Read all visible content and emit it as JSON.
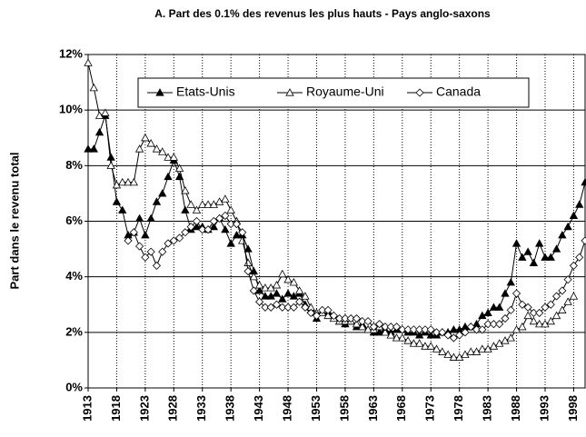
{
  "chart_data": {
    "type": "line",
    "title": "A. Part des 0.1% des revenus les plus hauts  - Pays anglo-saxons",
    "ylabel": "Part dans le revenu total",
    "x": [
      1913,
      1914,
      1915,
      1916,
      1917,
      1918,
      1919,
      1920,
      1921,
      1922,
      1923,
      1924,
      1925,
      1926,
      1927,
      1928,
      1929,
      1930,
      1931,
      1932,
      1933,
      1934,
      1935,
      1936,
      1937,
      1938,
      1939,
      1940,
      1941,
      1942,
      1943,
      1944,
      1945,
      1946,
      1947,
      1948,
      1949,
      1950,
      1951,
      1952,
      1953,
      1954,
      1955,
      1956,
      1957,
      1958,
      1959,
      1960,
      1961,
      1962,
      1963,
      1964,
      1965,
      1966,
      1967,
      1968,
      1969,
      1970,
      1971,
      1972,
      1973,
      1974,
      1975,
      1976,
      1977,
      1978,
      1979,
      1980,
      1981,
      1982,
      1983,
      1984,
      1985,
      1986,
      1987,
      1988,
      1989,
      1990,
      1991,
      1992,
      1993,
      1994,
      1995,
      1996,
      1997,
      1998,
      1999,
      2000
    ],
    "xlim": [
      1913,
      2000
    ],
    "xticks": [
      1913,
      1918,
      1923,
      1928,
      1933,
      1938,
      1943,
      1948,
      1953,
      1958,
      1963,
      1968,
      1973,
      1978,
      1983,
      1988,
      1993,
      1998
    ],
    "ylim": [
      0,
      12
    ],
    "yticks": [
      {
        "value": 0,
        "label": "0%"
      },
      {
        "value": 2,
        "label": "2%"
      },
      {
        "value": 4,
        "label": "4%"
      },
      {
        "value": 6,
        "label": "6%"
      },
      {
        "value": 8,
        "label": "8%"
      },
      {
        "value": 10,
        "label": "10%"
      },
      {
        "value": 12,
        "label": "12%"
      }
    ],
    "grid": true,
    "series": [
      {
        "name": "Etats-Unis",
        "color": "#000000",
        "marker": "filled-triangle",
        "values": [
          8.6,
          8.6,
          9.2,
          9.8,
          8.3,
          6.7,
          6.4,
          5.5,
          5.6,
          6.1,
          5.5,
          6.1,
          6.7,
          7.0,
          7.6,
          8.2,
          7.6,
          6.4,
          5.7,
          5.8,
          5.8,
          5.7,
          5.8,
          6.1,
          5.7,
          5.2,
          5.5,
          5.5,
          5.0,
          4.2,
          3.5,
          3.3,
          3.3,
          3.4,
          3.2,
          3.4,
          3.3,
          3.4,
          3.0,
          2.8,
          2.5,
          2.7,
          2.7,
          2.6,
          2.4,
          2.3,
          2.4,
          2.2,
          2.3,
          2.1,
          2.0,
          2.0,
          2.1,
          2.0,
          2.1,
          2.1,
          2.0,
          2.0,
          1.9,
          2.0,
          1.9,
          1.9,
          2.0,
          2.0,
          2.1,
          2.1,
          2.2,
          2.2,
          2.3,
          2.6,
          2.7,
          2.9,
          2.9,
          3.4,
          3.8,
          5.2,
          4.7,
          4.9,
          4.5,
          5.2,
          4.7,
          4.7,
          5.0,
          5.5,
          5.8,
          6.2,
          6.6,
          7.4
        ]
      },
      {
        "name": "Royaume-Uni",
        "color": "#000000",
        "marker": "open-triangle",
        "values": [
          11.7,
          10.8,
          9.8,
          9.9,
          8.0,
          7.3,
          7.4,
          7.4,
          7.4,
          8.6,
          9.0,
          8.8,
          8.6,
          8.5,
          8.3,
          8.3,
          7.9,
          7.1,
          6.6,
          6.4,
          6.6,
          6.6,
          6.6,
          6.7,
          6.8,
          6.4,
          6.0,
          5.3,
          4.5,
          4.0,
          3.7,
          3.6,
          3.6,
          3.7,
          4.1,
          3.9,
          3.8,
          3.5,
          3.3,
          2.9,
          2.7,
          2.7,
          2.6,
          2.5,
          2.4,
          2.4,
          2.4,
          2.3,
          2.2,
          2.1,
          2.1,
          2.2,
          2.0,
          1.9,
          1.8,
          1.8,
          1.7,
          1.6,
          1.6,
          1.5,
          1.5,
          1.4,
          1.3,
          1.2,
          1.1,
          1.1,
          1.2,
          1.3,
          1.3,
          1.4,
          1.4,
          1.5,
          1.6,
          1.7,
          1.8,
          2.1,
          2.2,
          2.6,
          2.4,
          2.3,
          2.3,
          2.4,
          2.6,
          2.8,
          3.1,
          3.3,
          null,
          null
        ]
      },
      {
        "name": "Canada",
        "color": "#000000",
        "marker": "open-diamond",
        "values": [
          null,
          null,
          null,
          null,
          null,
          null,
          null,
          5.3,
          5.6,
          5.1,
          4.7,
          4.9,
          4.4,
          4.9,
          5.2,
          5.3,
          5.4,
          5.6,
          5.8,
          6.0,
          5.7,
          5.7,
          6.0,
          6.1,
          6.2,
          5.9,
          5.9,
          5.6,
          4.2,
          3.5,
          3.1,
          2.9,
          2.9,
          3.0,
          2.9,
          2.9,
          2.9,
          3.1,
          2.9,
          2.7,
          2.6,
          2.8,
          2.8,
          2.6,
          2.5,
          2.5,
          2.5,
          2.5,
          2.4,
          2.4,
          2.2,
          2.3,
          2.2,
          2.2,
          2.2,
          2.1,
          2.1,
          2.1,
          2.1,
          2.1,
          2.1,
          2.0,
          2.0,
          1.9,
          1.8,
          1.9,
          2.0,
          2.2,
          2.1,
          2.1,
          2.3,
          2.3,
          2.3,
          2.5,
          2.8,
          3.4,
          3.0,
          2.9,
          2.7,
          2.7,
          2.9,
          3.0,
          3.3,
          3.5,
          3.9,
          4.4,
          4.7,
          5.3
        ]
      }
    ]
  }
}
